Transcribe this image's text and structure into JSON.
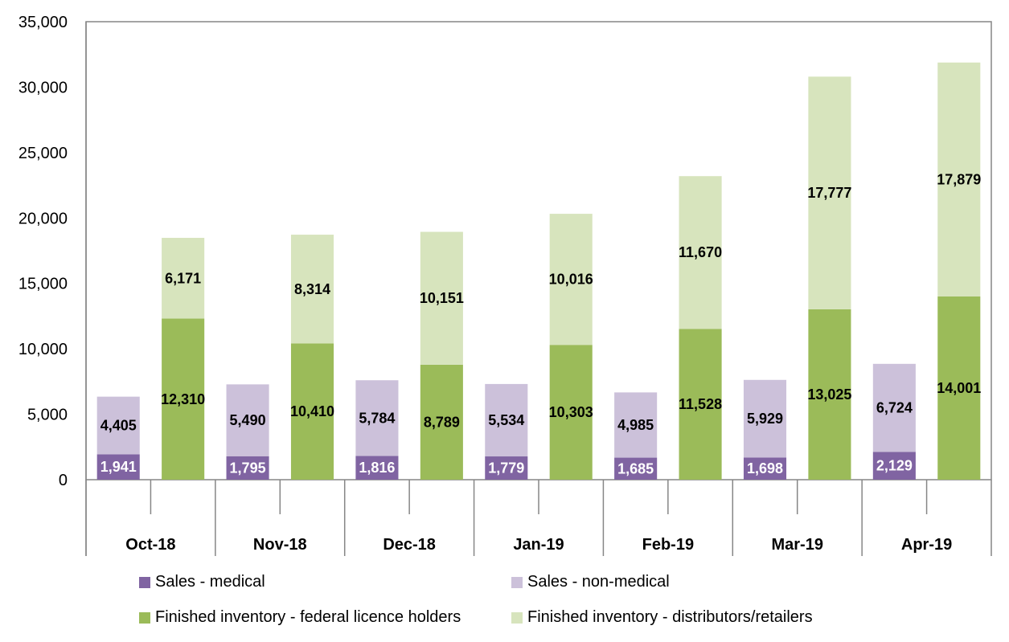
{
  "chart_data": {
    "type": "bar",
    "stacked": true,
    "categories": [
      "Oct-18",
      "Nov-18",
      "Dec-18",
      "Jan-19",
      "Feb-19",
      "Mar-19",
      "Apr-19"
    ],
    "stacks": [
      {
        "series": [
          {
            "name": "Sales - medical",
            "color": "#8064a2",
            "label_color": "#ffffff",
            "values": [
              1941,
              1795,
              1816,
              1779,
              1685,
              1698,
              2129
            ]
          },
          {
            "name": "Sales - non-medical",
            "color": "#ccc1da",
            "label_color": "#000000",
            "values": [
              4405,
              5490,
              5784,
              5534,
              4985,
              5929,
              6724
            ]
          }
        ]
      },
      {
        "series": [
          {
            "name": "Finished inventory - federal licence holders",
            "color": "#9bbb59",
            "label_color": "#000000",
            "values": [
              12310,
              10410,
              8789,
              10303,
              11528,
              13025,
              14001
            ]
          },
          {
            "name": "Finished inventory - distributors/retailers",
            "color": "#d7e4bd",
            "label_color": "#000000",
            "values": [
              6171,
              8314,
              10151,
              10016,
              11670,
              17777,
              17879
            ]
          }
        ]
      }
    ],
    "ylim": [
      0,
      35000
    ],
    "yticks": [
      "0",
      "5,000",
      "10,000",
      "15,000",
      "20,000",
      "25,000",
      "30,000",
      "35,000"
    ],
    "grid": false,
    "legend_position": "bottom"
  },
  "legend": [
    {
      "label": "Sales - medical",
      "color": "#8064a2"
    },
    {
      "label": "Sales - non-medical",
      "color": "#ccc1da"
    },
    {
      "label": "Finished inventory - federal licence holders",
      "color": "#9bbb59"
    },
    {
      "label": "Finished inventory - distributors/retailers",
      "color": "#d7e4bd"
    }
  ]
}
